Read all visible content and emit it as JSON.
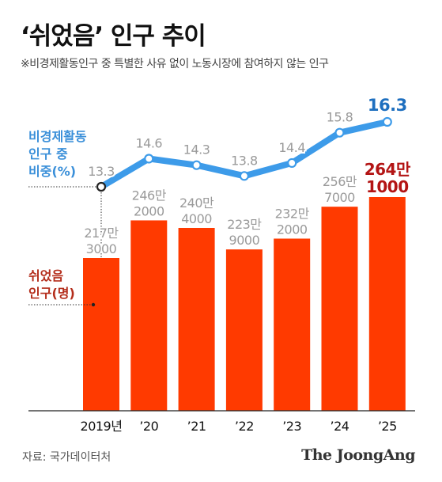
{
  "header": {
    "title": "‘쉬었음’ 인구 추이",
    "subtitle": "※비경제활동인구 중 특별한 사유 없이 노동시장에 참여하지 않는 인구"
  },
  "legend": {
    "line_label_1": "비경제활동",
    "line_label_2": "인구 중",
    "line_label_3": "비중(%)",
    "bar_label_1": "쉬었음",
    "bar_label_2": "인구(명)"
  },
  "footer": {
    "source": "자료: 국가데이터처",
    "logo": "The JoongAng"
  },
  "colors": {
    "bar": "#ff3a00",
    "bar_latest": "#ff3a00",
    "line": "#3d9be9",
    "line_label": "#3a8fd9",
    "bar_label": "#b42d1b",
    "value_label": "#9a9a9a",
    "latest_value_line": "#1e6fbf",
    "latest_value_bar": "#b31414",
    "axis": "#222222"
  },
  "chart_data": {
    "type": "bar",
    "categories": [
      "2019년",
      "’20",
      "’21",
      "’22",
      "’23",
      "’24",
      "’25"
    ],
    "series": [
      {
        "name": "쉬었음 인구(명)",
        "type": "bar",
        "values": [
          2173000,
          2462000,
          2404000,
          2239000,
          2322000,
          2567000,
          2641000
        ],
        "labels": [
          [
            "217만",
            "3000"
          ],
          [
            "246만",
            "2000"
          ],
          [
            "240만",
            "4000"
          ],
          [
            "223만",
            "9000"
          ],
          [
            "232만",
            "2000"
          ],
          [
            "256만",
            "7000"
          ],
          [
            "264만",
            "1000"
          ]
        ]
      },
      {
        "name": "비경제활동 인구 중 비중(%)",
        "type": "line",
        "values": [
          13.3,
          14.6,
          14.3,
          13.8,
          14.4,
          15.8,
          16.3
        ],
        "labels": [
          "13.3",
          "14.6",
          "14.3",
          "13.8",
          "14.4",
          "15.8",
          "16.3"
        ]
      }
    ],
    "highlight_latest": true,
    "grid": false
  }
}
